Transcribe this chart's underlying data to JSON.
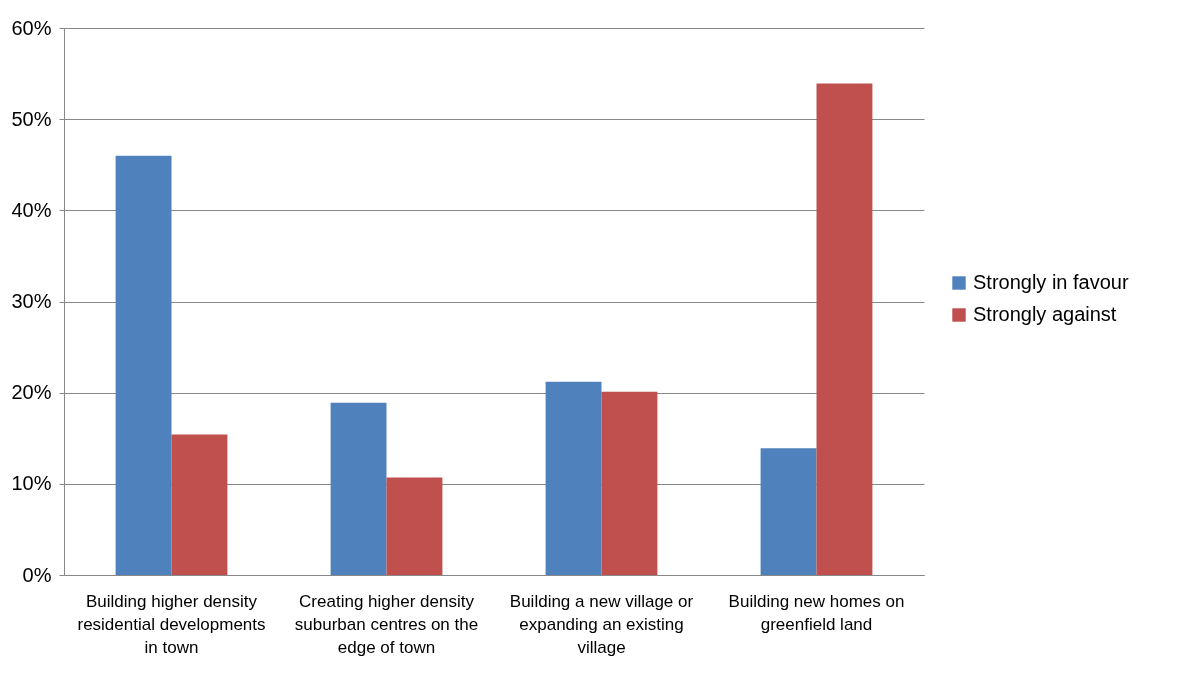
{
  "chart_data": {
    "type": "bar",
    "categories": [
      "Building higher density residential developments in town",
      "Creating higher density suburban centres on the edge of town",
      "Building a new village or expanding an existing village",
      "Building new homes on greenfield land"
    ],
    "series": [
      {
        "name": "Strongly in favour",
        "color": "#4f81bd",
        "values": [
          46,
          18.9,
          21.2,
          13.9
        ]
      },
      {
        "name": "Strongly against",
        "color": "#c0504d",
        "values": [
          15.4,
          10.7,
          20.1,
          53.9
        ]
      }
    ],
    "ylim": [
      0,
      60
    ],
    "yticks": [
      {
        "value": 0,
        "label": "0%"
      },
      {
        "value": 10,
        "label": "10%"
      },
      {
        "value": 20,
        "label": "20%"
      },
      {
        "value": 30,
        "label": "30%"
      },
      {
        "value": 40,
        "label": "40%"
      },
      {
        "value": 50,
        "label": "50%"
      },
      {
        "value": 60,
        "label": "60%"
      }
    ],
    "grid": "y",
    "legend": "right"
  }
}
